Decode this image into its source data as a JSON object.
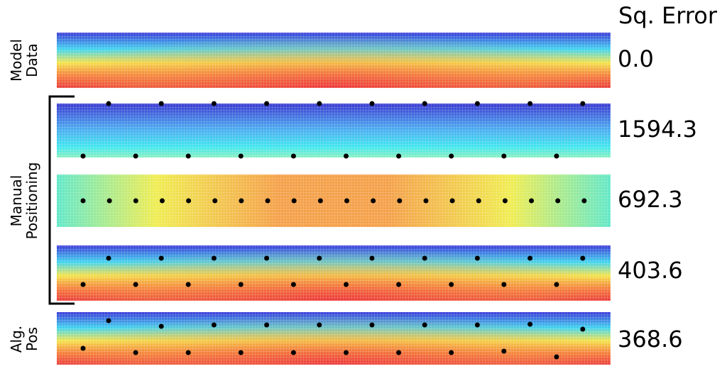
{
  "header": "Sq. Error",
  "labels": {
    "model": [
      "Model",
      "Data"
    ],
    "manual": [
      "Manual",
      "Positioning"
    ],
    "alg": [
      "Alg.",
      "Pos"
    ]
  },
  "panels": [
    {
      "error": "0.0"
    },
    {
      "error": "1594.3"
    },
    {
      "error": "692.3"
    },
    {
      "error": "403.6"
    },
    {
      "error": "368.6"
    }
  ]
}
